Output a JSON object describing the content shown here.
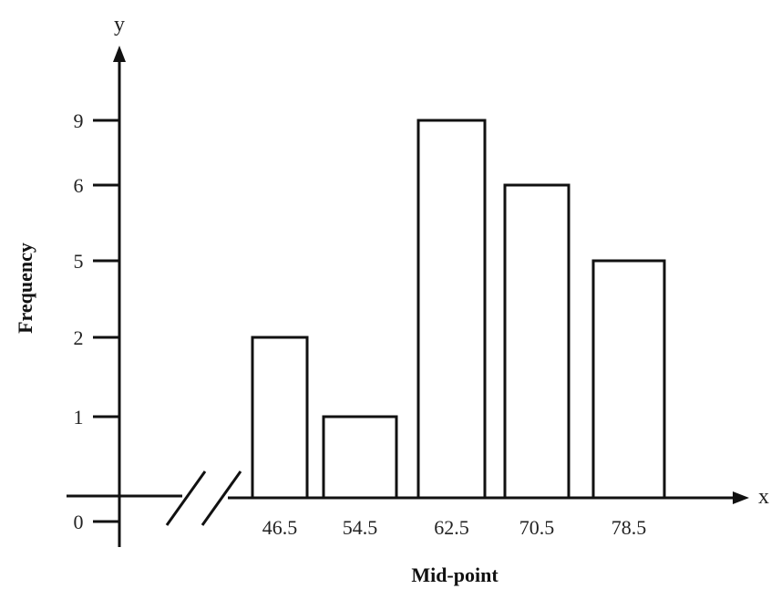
{
  "chart_data": {
    "type": "bar",
    "categories": [
      "46.5",
      "54.5",
      "62.5",
      "70.5",
      "78.5"
    ],
    "values": [
      2,
      1,
      9,
      6,
      5
    ],
    "y_tick_labels": [
      "0",
      "1",
      "2",
      "5",
      "6",
      "9"
    ],
    "xlabel": "Mid-point",
    "ylabel": "Frequency",
    "x_axis_letter": "x",
    "y_axis_letter": "y",
    "axis_break": true,
    "grid": false,
    "colors": {
      "bar_fill": "#ffffff",
      "bar_stroke": "#111111",
      "axis": "#111111"
    }
  }
}
